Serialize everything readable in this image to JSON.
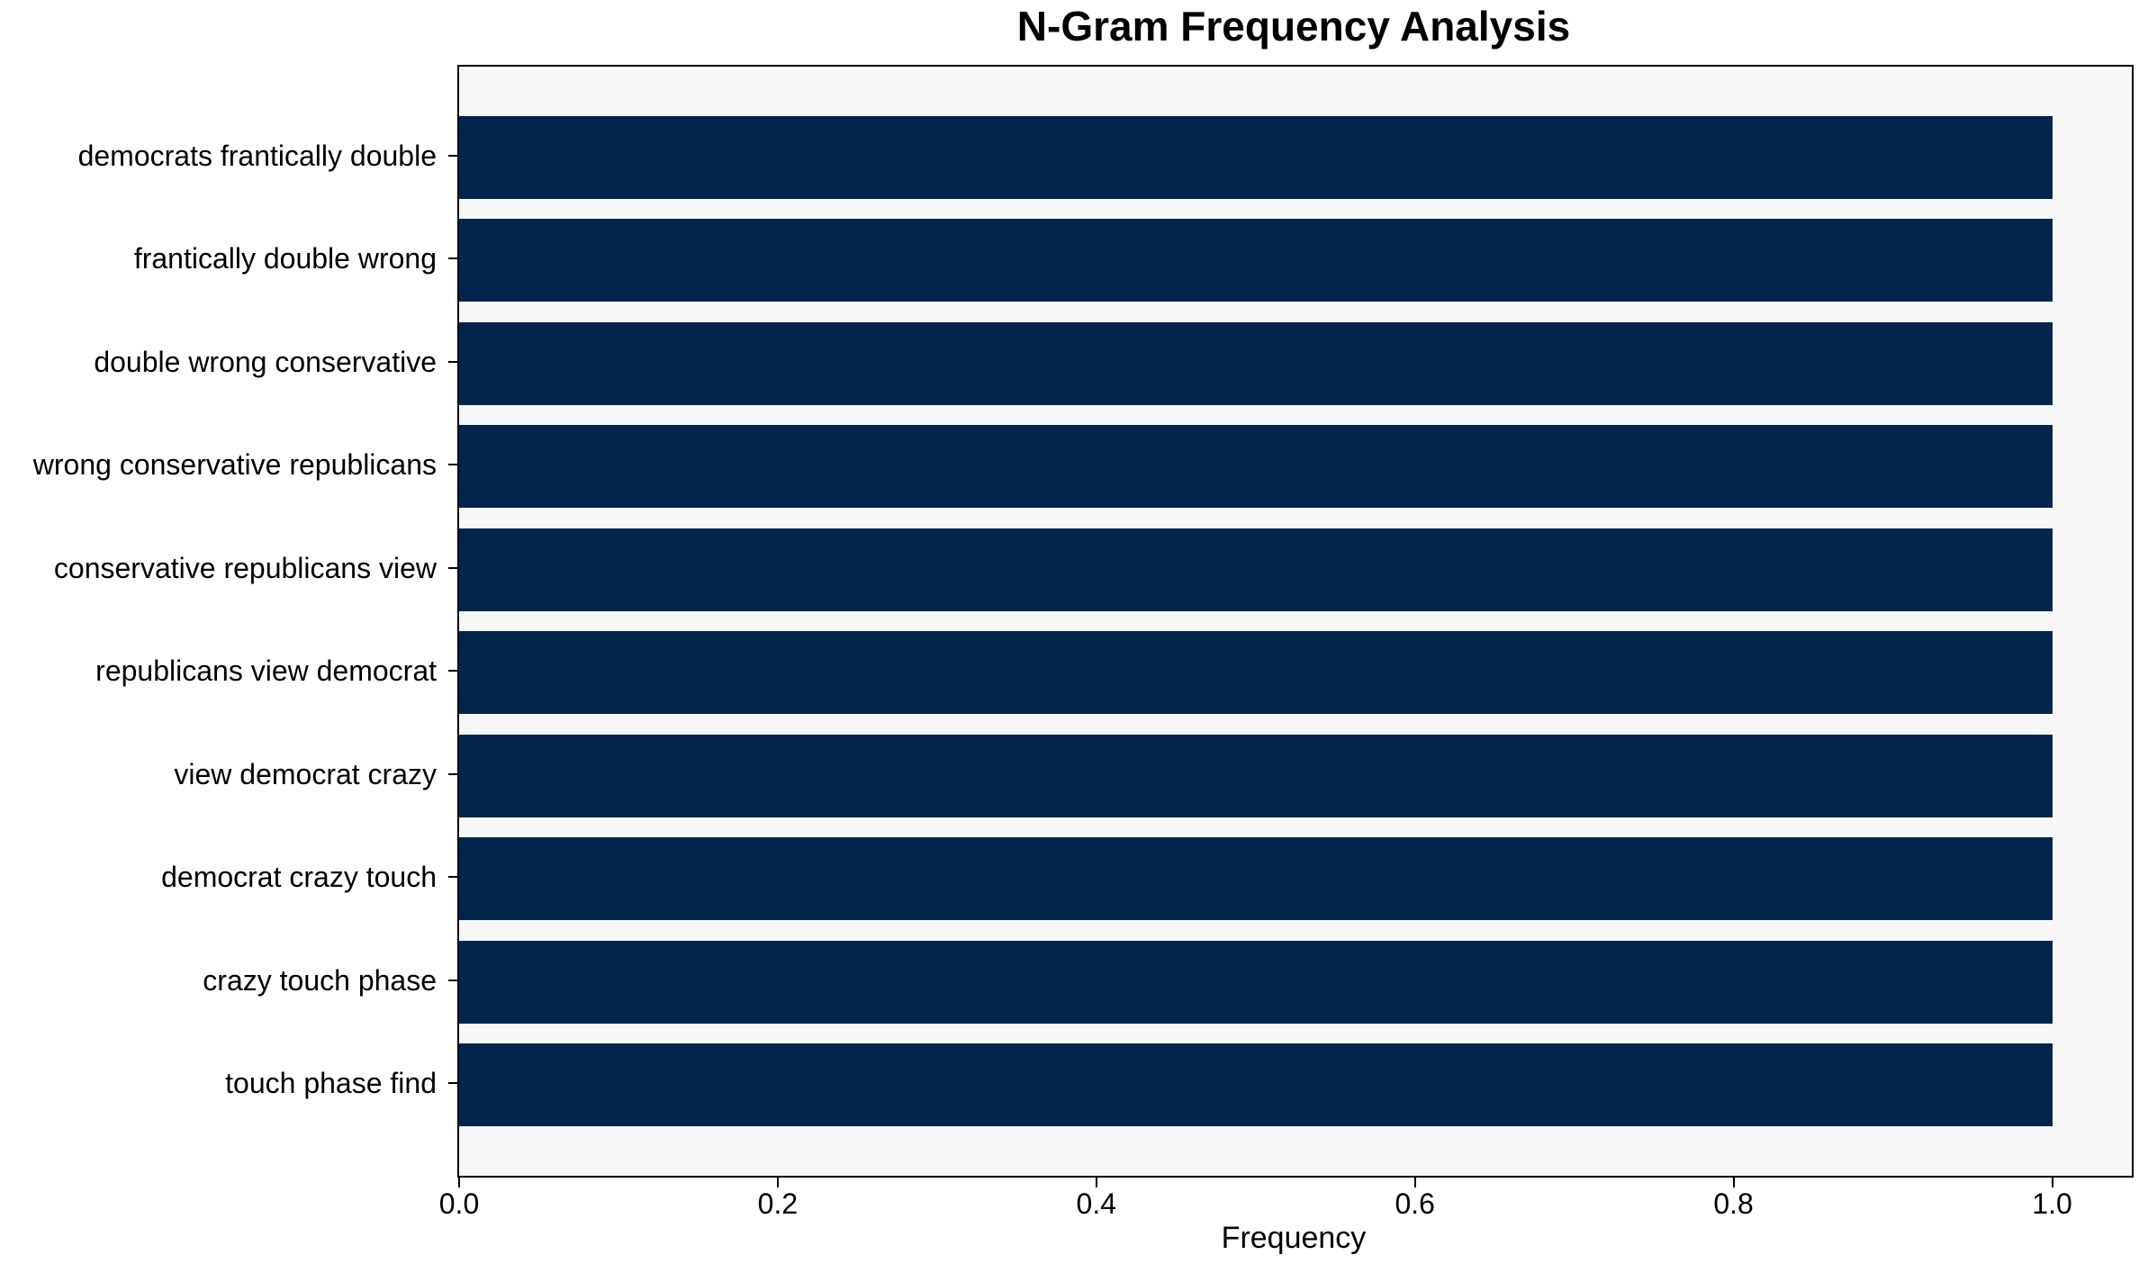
{
  "chart_data": {
    "type": "bar",
    "orientation": "horizontal",
    "title": "N-Gram Frequency Analysis",
    "xlabel": "Frequency",
    "ylabel": "",
    "categories": [
      "democrats frantically double",
      "frantically double wrong",
      "double wrong conservative",
      "wrong conservative republicans",
      "conservative republicans view",
      "republicans view democrat",
      "view democrat crazy",
      "democrat crazy touch",
      "crazy touch phase",
      "touch phase find"
    ],
    "values": [
      1.0,
      1.0,
      1.0,
      1.0,
      1.0,
      1.0,
      1.0,
      1.0,
      1.0,
      1.0
    ],
    "x_ticks": [
      {
        "label": "0.0",
        "value": 0.0
      },
      {
        "label": "0.2",
        "value": 0.2
      },
      {
        "label": "0.4",
        "value": 0.4
      },
      {
        "label": "0.6",
        "value": 0.6
      },
      {
        "label": "0.8",
        "value": 0.8
      },
      {
        "label": "1.0",
        "value": 1.0
      }
    ],
    "xlim": [
      0,
      1.05
    ],
    "grid": false,
    "legend_position": "none",
    "bar_color": "#02254e",
    "plot_background": "#f7f7f7",
    "figure_background": "#ffffff",
    "spine_color": "#000000",
    "text_color": "#000000"
  }
}
